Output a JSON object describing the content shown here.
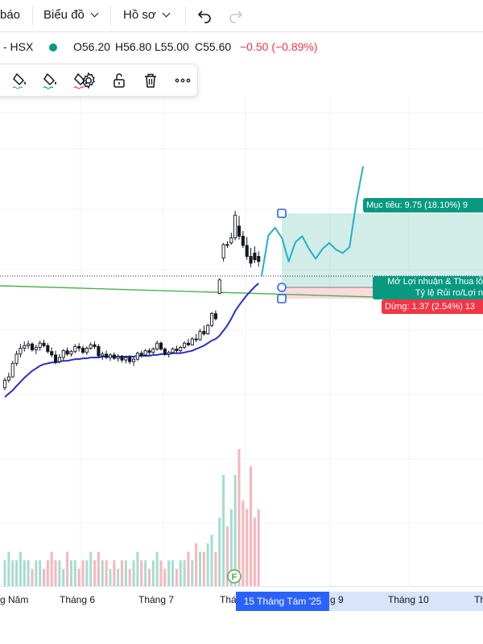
{
  "topbar": {
    "alerts_label": "báo",
    "chart_menu_label": "Biểu đồ",
    "profile_menu_label": "Hồ sơ",
    "undo_icon": "undo-icon",
    "redo_icon": "redo-icon"
  },
  "legend": {
    "symbol": "- HSX",
    "open": "O56.20",
    "high": "H56.80",
    "low": "L55.00",
    "close": "C55.60",
    "change": "−0.50 (−0.89%)",
    "status_color": "#089981",
    "up_color": "#089981",
    "down_color": "#f23645"
  },
  "drawing_toolbar": {
    "icons": [
      "line-color-icon",
      "fill-color-icon",
      "text-color-icon",
      "settings-icon",
      "unlock-icon",
      "delete-icon",
      "more-icon"
    ]
  },
  "position_tool": {
    "target_label": "Mục tiêu: 9.75 (18.10%) 9",
    "open_pl_label": "Mở Lợi nhuận & Thua lỗ",
    "risk_reward_label": "Tỷ lệ Rủi ro/Lợi n",
    "stop_label": "Dừng: 1.37 (2.54%) 13",
    "target_color": "#089981",
    "stop_color": "#f23645"
  },
  "x_axis": {
    "ticks": [
      "g Năm",
      "Tháng 6",
      "Tháng 7",
      "Thá",
      "g 9",
      "Tháng 10",
      "Th"
    ],
    "highlight_label": "15 Tháng Tám '25",
    "event_marker": "F"
  },
  "chart_data": {
    "type": "candlestick",
    "price_unit": "VND (thousands)",
    "last_bar": {
      "open": 56.2,
      "high": 56.8,
      "low": 55.0,
      "close": 55.6,
      "change": -0.5,
      "change_pct": -0.89
    },
    "entry_price": 53.87,
    "target": {
      "delta": 9.75,
      "pct": 18.1,
      "price": 63.62
    },
    "stop": {
      "delta": 1.37,
      "pct": 2.54,
      "price": 52.5
    },
    "ma_color": "#2a2ec8",
    "trendline_color": "#4caf50",
    "candles": [
      [
        40.6,
        41.8,
        40.3,
        41.5
      ],
      [
        41.5,
        42.4,
        41.2,
        41.9
      ],
      [
        41.9,
        43.8,
        41.8,
        43.5
      ],
      [
        43.5,
        45.0,
        43.2,
        44.6
      ],
      [
        44.6,
        45.8,
        44.2,
        45.3
      ],
      [
        45.3,
        46.1,
        44.9,
        45.6
      ],
      [
        45.6,
        46.2,
        45.2,
        45.8
      ],
      [
        45.8,
        46.0,
        44.9,
        45.1
      ],
      [
        45.1,
        45.7,
        44.6,
        45.4
      ],
      [
        45.4,
        46.2,
        45.0,
        45.9
      ],
      [
        45.9,
        46.3,
        45.4,
        45.6
      ],
      [
        45.6,
        45.9,
        44.7,
        44.9
      ],
      [
        44.9,
        45.4,
        44.2,
        44.5
      ],
      [
        44.5,
        45.0,
        43.4,
        43.7
      ],
      [
        43.7,
        44.6,
        43.5,
        44.2
      ],
      [
        44.2,
        45.2,
        43.8,
        45.0
      ],
      [
        45.0,
        45.4,
        44.4,
        44.6
      ],
      [
        44.6,
        45.1,
        44.3,
        44.9
      ],
      [
        44.9,
        45.8,
        44.7,
        45.5
      ],
      [
        45.5,
        45.9,
        44.9,
        45.3
      ],
      [
        45.3,
        45.6,
        44.6,
        44.8
      ],
      [
        44.8,
        45.5,
        44.5,
        45.3
      ],
      [
        45.3,
        46.0,
        45.1,
        45.7
      ],
      [
        45.7,
        46.1,
        45.2,
        45.5
      ],
      [
        45.5,
        45.8,
        44.2,
        44.4
      ],
      [
        44.4,
        44.9,
        43.9,
        44.6
      ],
      [
        44.6,
        45.0,
        44.0,
        44.2
      ],
      [
        44.2,
        44.7,
        43.8,
        44.5
      ],
      [
        44.5,
        44.8,
        43.9,
        44.1
      ],
      [
        44.1,
        44.6,
        43.7,
        44.3
      ],
      [
        44.3,
        44.5,
        43.6,
        43.9
      ],
      [
        43.9,
        44.4,
        43.5,
        44.2
      ],
      [
        44.2,
        44.5,
        43.4,
        43.7
      ],
      [
        43.7,
        44.2,
        43.2,
        44.0
      ],
      [
        44.0,
        44.9,
        43.8,
        44.7
      ],
      [
        44.7,
        45.0,
        44.2,
        44.5
      ],
      [
        44.5,
        45.2,
        44.3,
        45.0
      ],
      [
        45.0,
        45.3,
        44.5,
        44.8
      ],
      [
        44.8,
        45.4,
        44.6,
        45.2
      ],
      [
        45.2,
        46.2,
        45.0,
        45.9
      ],
      [
        45.9,
        46.1,
        45.0,
        45.2
      ],
      [
        45.2,
        45.4,
        44.4,
        44.6
      ],
      [
        44.6,
        45.0,
        44.2,
        44.8
      ],
      [
        44.8,
        45.4,
        44.6,
        45.2
      ],
      [
        45.2,
        45.6,
        44.8,
        45.0
      ],
      [
        45.0,
        45.6,
        44.8,
        45.4
      ],
      [
        45.4,
        46.1,
        45.2,
        45.9
      ],
      [
        45.9,
        46.4,
        45.5,
        45.7
      ],
      [
        45.7,
        46.6,
        45.6,
        46.4
      ],
      [
        46.4,
        47.0,
        46.0,
        46.3
      ],
      [
        46.3,
        47.6,
        46.2,
        47.3
      ],
      [
        47.3,
        48.0,
        46.8,
        47.0
      ],
      [
        47.0,
        48.2,
        46.9,
        48.0
      ],
      [
        48.0,
        49.6,
        47.8,
        49.4
      ],
      [
        49.4,
        49.8,
        48.6,
        48.8
      ],
      [
        51.8,
        53.6,
        51.7,
        53.4
      ],
      [
        56.0,
        57.8,
        55.6,
        57.6
      ],
      [
        57.6,
        58.0,
        57.2,
        57.5
      ],
      [
        57.8,
        59.0,
        57.6,
        58.4
      ],
      [
        58.4,
        61.6,
        58.1,
        61.1
      ],
      [
        59.8,
        61.0,
        58.2,
        58.6
      ],
      [
        58.6,
        59.2,
        57.2,
        57.5
      ],
      [
        57.5,
        58.5,
        55.8,
        56.2
      ],
      [
        56.2,
        57.2,
        54.9,
        55.4
      ],
      [
        56.6,
        57.4,
        55.4,
        55.8
      ],
      [
        56.2,
        56.8,
        55.0,
        55.6
      ]
    ],
    "volume": [
      3,
      4,
      3,
      3,
      4,
      3,
      3,
      2,
      3,
      3,
      2,
      3,
      4,
      3,
      3,
      2,
      4,
      3,
      3,
      2,
      3,
      3,
      4,
      3,
      4,
      3,
      3,
      2,
      3,
      2,
      3,
      3,
      2,
      3,
      4,
      3,
      3,
      2,
      3,
      4,
      3,
      2,
      3,
      3,
      2,
      3,
      3,
      4,
      3,
      5,
      4,
      4,
      5,
      6,
      4,
      8,
      13,
      7,
      9,
      13,
      16,
      10,
      9,
      14,
      8,
      9
    ],
    "moving_average": [
      39.5,
      39.9,
      40.3,
      40.8,
      41.3,
      41.8,
      42.2,
      42.6,
      42.9,
      43.2,
      43.4,
      43.5,
      43.6,
      43.6,
      43.7,
      43.8,
      43.8,
      43.9,
      44.0,
      44.0,
      44.1,
      44.1,
      44.2,
      44.2,
      44.2,
      44.3,
      44.3,
      44.3,
      44.3,
      44.3,
      44.3,
      44.3,
      44.3,
      44.3,
      44.4,
      44.4,
      44.4,
      44.4,
      44.5,
      44.5,
      44.6,
      44.6,
      44.6,
      44.7,
      44.7,
      44.7,
      44.8,
      44.9,
      45.0,
      45.2,
      45.4,
      45.6,
      45.9,
      46.2,
      46.4,
      46.8,
      47.4,
      48.0,
      48.8,
      49.7,
      50.4,
      51.0,
      51.6,
      52.1,
      52.6,
      53.0
    ],
    "projection_path": [
      53.9,
      58.7,
      59.6,
      58.4,
      55.6,
      57.9,
      58.6,
      57.1,
      55.9,
      57.1,
      57.8,
      57.0,
      56.6,
      57.3,
      62.6,
      66.9
    ]
  }
}
